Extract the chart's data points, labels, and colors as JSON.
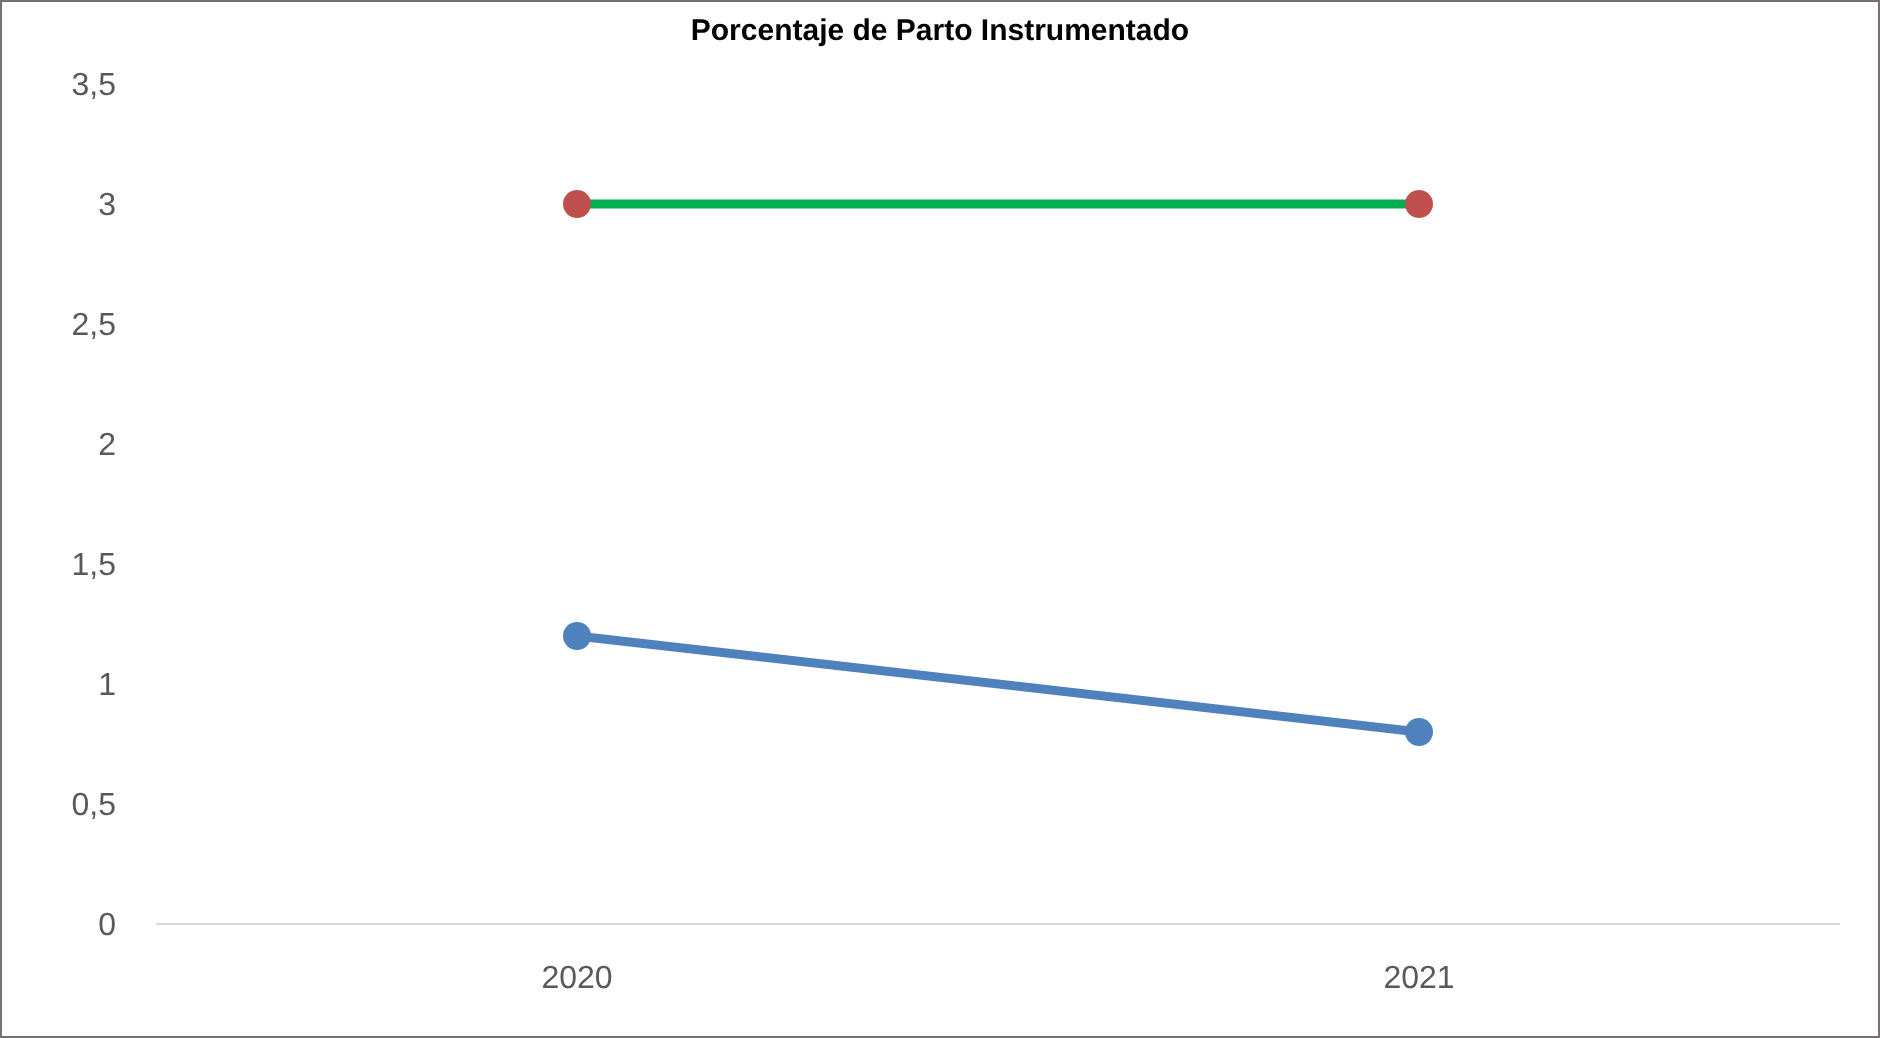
{
  "chart_data": {
    "type": "line",
    "title": "Porcentaje de Parto Instrumentado",
    "categories": [
      "2020",
      "2021"
    ],
    "series": [
      {
        "color": "#00b050",
        "colors": [
          "#c0504d",
          "#c0504d"
        ],
        "values": [
          3,
          3
        ]
      },
      {
        "color": "#4f81bd",
        "values": [
          1.2,
          0.8
        ]
      }
    ],
    "ylim": [
      0,
      3.5
    ],
    "yticks": [
      0,
      {
        "value": 0.5,
        "label": "0,5"
      },
      1,
      {
        "value": 1.5,
        "label": "1,5"
      },
      2,
      {
        "value": 2.5,
        "label": "2,5"
      },
      3,
      {
        "value": 3.5,
        "label": "3,5"
      }
    ],
    "grid": false,
    "marker": "circle",
    "line_style": "solid"
  }
}
